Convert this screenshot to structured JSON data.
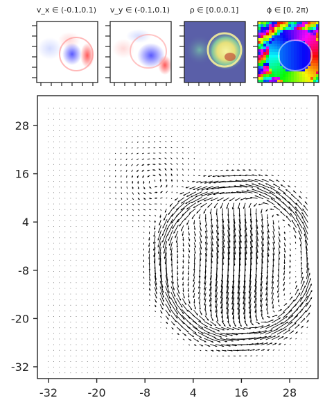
{
  "chart_data": [
    {
      "type": "heatmap",
      "title": "v_x ∈ (-0.1,0.1)",
      "colormap": "bwr",
      "range": [
        -0.1,
        0.1
      ]
    },
    {
      "type": "heatmap",
      "title": "v_y ∈ (-0.1,0.1)",
      "colormap": "bwr",
      "range": [
        -0.1,
        0.1
      ]
    },
    {
      "type": "heatmap",
      "title": "ρ ∈ [0.0,0.1]",
      "colormap": "viridis-like",
      "range": [
        0.0,
        0.1
      ]
    },
    {
      "type": "heatmap",
      "title": "ϕ ∈ [0, 2π)",
      "colormap": "hsv",
      "range": [
        "0",
        "2π"
      ]
    },
    {
      "type": "quiver",
      "xlim": [
        -35,
        35
      ],
      "ylim": [
        -35,
        35
      ],
      "xticks": [
        -32,
        -20,
        -8,
        4,
        16,
        28
      ],
      "yticks": [
        28,
        16,
        4,
        -8,
        -20,
        -32
      ],
      "xtick_labels": [
        "-32",
        "-20",
        "-8",
        "4",
        "16",
        "28"
      ],
      "ytick_labels": [
        "28",
        "16",
        "4",
        "-8",
        "-20",
        "-32"
      ],
      "grid_spacing": 1,
      "circle_center": [
        15,
        -6
      ],
      "circle_radius": 17,
      "flow_description_values": {
        "inner_vortex_center": [
          14,
          -4
        ],
        "outer_ring_radius": 19
      },
      "colors": {
        "arrows": "#000000",
        "axes": "#222222"
      }
    }
  ]
}
